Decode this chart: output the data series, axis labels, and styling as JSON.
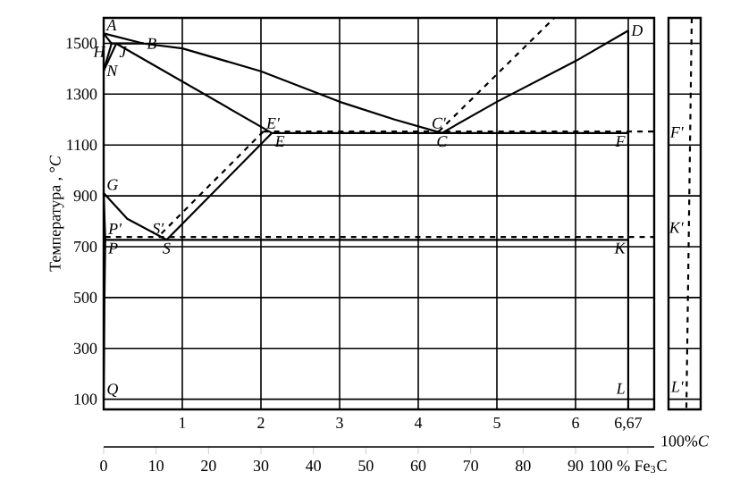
{
  "chart_data": [
    {
      "type": "line",
      "ylabel": "Температура , °*C*",
      "marker": "none",
      "grid": true,
      "xlim": [
        0,
        7.0
      ],
      "xticks": [
        1,
        2,
        3,
        4,
        5,
        6,
        {
          "value": 6.67,
          "label": "6,67"
        }
      ],
      "ylim": [
        60,
        1600
      ],
      "yticks": [
        100,
        300,
        500,
        700,
        900,
        1100,
        1300,
        1500
      ],
      "x2lim": [
        0,
        105
      ],
      "x2ticks": [
        0,
        10,
        20,
        30,
        40,
        50,
        60,
        70,
        80,
        90,
        {
          "value": 100,
          "label": "100 % Fe$_{3}$C"
        }
      ],
      "series": [
        {
          "color": "#000000",
          "x": [
            0,
            0.51,
            1,
            2,
            3,
            3.7,
            4.3
          ],
          "values": [
            1539,
            1499,
            1480,
            1390,
            1270,
            1200,
            1147
          ]
        },
        {
          "color": "#000000",
          "x": [
            4.3,
            5,
            6,
            6.67
          ],
          "values": [
            1147,
            1270,
            1430,
            1550
          ]
        },
        {
          "color": "#000000",
          "x": [
            0,
            0.1
          ],
          "values": [
            1539,
            1499
          ]
        },
        {
          "color": "#000000",
          "x": [
            0.1,
            0.51
          ],
          "values": [
            1499,
            1499
          ]
        },
        {
          "color": "#000000",
          "x": [
            0.16,
            2.14
          ],
          "values": [
            1499,
            1147
          ]
        },
        {
          "color": "#000000",
          "x": [
            0.16,
            0
          ],
          "values": [
            1499,
            1392
          ]
        },
        {
          "color": "#000000",
          "x": [
            0.1,
            0
          ],
          "values": [
            1499,
            1392
          ]
        },
        {
          "color": "#000000",
          "x": [
            2.14,
            6.67
          ],
          "values": [
            1147,
            1147
          ]
        },
        {
          "color": "#000000",
          "x": [
            2.14,
            0.8
          ],
          "values": [
            1147,
            727
          ]
        },
        {
          "color": "#000000",
          "x": [
            0,
            0.3,
            0.8
          ],
          "values": [
            911,
            810,
            727
          ]
        },
        {
          "color": "#000000",
          "x": [
            0.02,
            6.67
          ],
          "values": [
            727,
            727
          ]
        },
        {
          "color": "#000000",
          "x": [
            0,
            0.02,
            0.01,
            0.005,
            0
          ],
          "values": [
            911,
            727,
            500,
            300,
            100
          ]
        },
        {
          "color": "#000000",
          "x": [
            6.67,
            6.67
          ],
          "values": [
            1550,
            60
          ]
        },
        {
          "color": "#000000",
          "line_style": "dashed",
          "x": [
            2.03,
            7.0
          ],
          "values": [
            1153,
            1153
          ]
        },
        {
          "color": "#000000",
          "line_style": "dashed",
          "x": [
            0.02,
            7.0
          ],
          "values": [
            738,
            738
          ]
        },
        {
          "color": "#000000",
          "line_style": "dashed",
          "x": [
            2.03,
            0.69
          ],
          "values": [
            1153,
            738
          ]
        },
        {
          "color": "#000000",
          "line_style": "dashed",
          "x": [
            4.26,
            5.73
          ],
          "values": [
            1153,
            1600
          ]
        }
      ],
      "annotations": [
        {
          "text": "A",
          "x": 0,
          "y": 1539
        },
        {
          "text": "B",
          "x": 0.51,
          "y": 1499
        },
        {
          "text": "H",
          "x": 0.1,
          "y": 1499
        },
        {
          "text": "J",
          "x": 0.16,
          "y": 1499
        },
        {
          "text": "N",
          "x": 0,
          "y": 1392
        },
        {
          "text": "E'",
          "x": 2.03,
          "y": 1153
        },
        {
          "text": "E",
          "x": 2.14,
          "y": 1147
        },
        {
          "text": "C'",
          "x": 4.26,
          "y": 1153
        },
        {
          "text": "C",
          "x": 4.3,
          "y": 1147
        },
        {
          "text": "F",
          "x": 6.67,
          "y": 1147
        },
        {
          "text": "D",
          "x": 6.67,
          "y": 1550
        },
        {
          "text": "G",
          "x": 0,
          "y": 911
        },
        {
          "text": "P'",
          "x": 0.02,
          "y": 738
        },
        {
          "text": "S'",
          "x": 0.69,
          "y": 738
        },
        {
          "text": "P",
          "x": 0.02,
          "y": 727
        },
        {
          "text": "S",
          "x": 0.8,
          "y": 727
        },
        {
          "text": "K",
          "x": 6.67,
          "y": 727
        },
        {
          "text": "Q",
          "x": 0,
          "y": 100
        },
        {
          "text": "L",
          "x": 6.67,
          "y": 60
        }
      ]
    },
    {
      "type": "other",
      "annotations": [
        "F'",
        "K'",
        "L'",
        "100%*C*"
      ]
    }
  ]
}
